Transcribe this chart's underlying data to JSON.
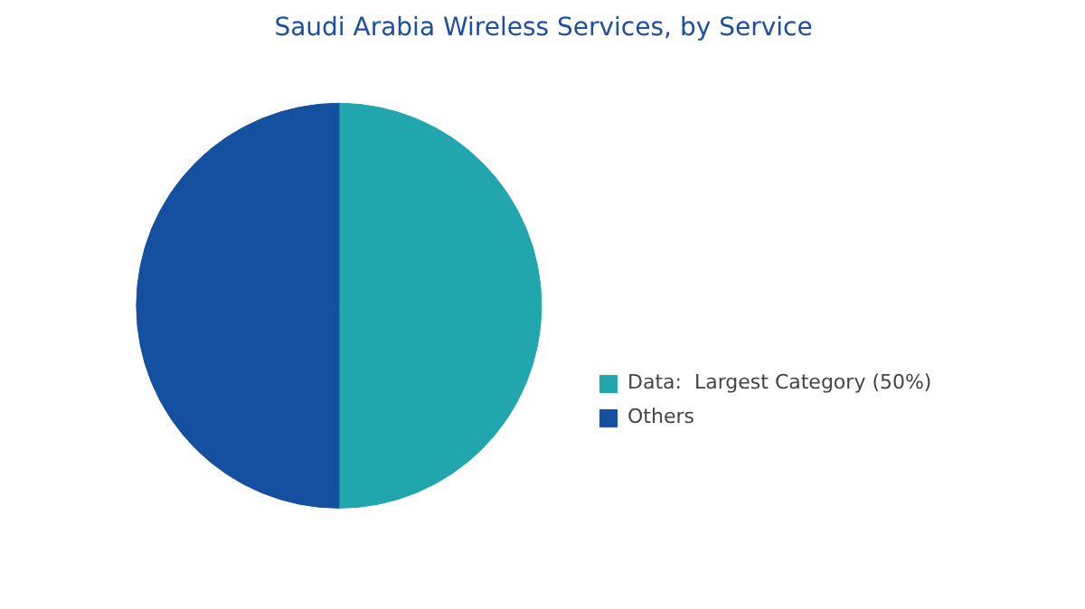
{
  "chart_data": {
    "type": "pie",
    "title": "Saudi Arabia Wireless Services, by Service",
    "categories": [
      "Data:  Largest Category (50%)",
      "Others"
    ],
    "values": [
      50,
      50
    ],
    "colors": [
      "#22a6ad",
      "#1550a0"
    ],
    "legend": "right"
  }
}
